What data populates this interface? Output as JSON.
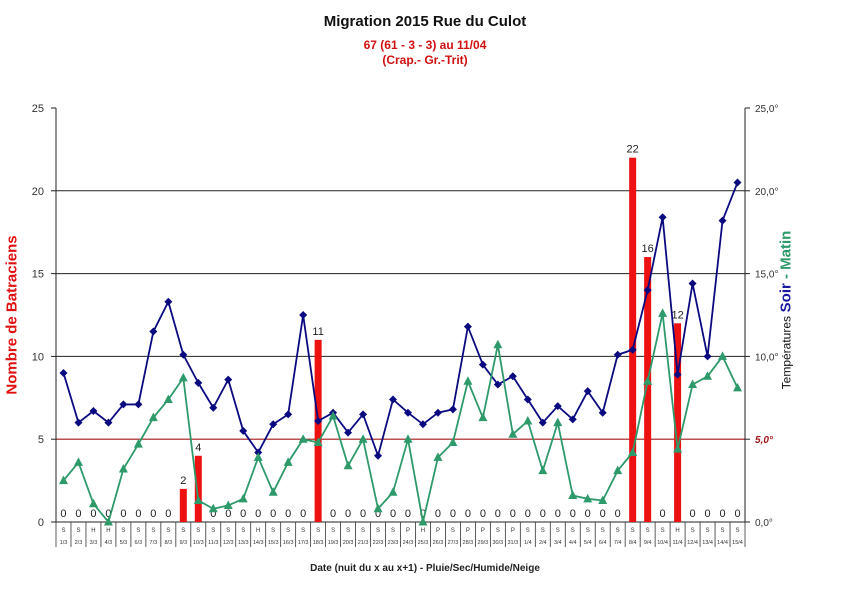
{
  "chart_data": {
    "type": "bar+line",
    "title": "Migration  2015 Rue du Culot",
    "subtitle": "67 (61 - 3 - 3) au 11/04",
    "subtitle2": "(Crap.- Gr.-Trit)",
    "xlabel": "Date (nuit du x au x+1) - Pluie/Sec/Humide/Neige",
    "ylabel": "Nombre de Batraciens",
    "y2label": {
      "prefix": "Températures",
      "soir": "Soir",
      "sep": " - ",
      "matin": "Matin"
    },
    "ylim": [
      0,
      25
    ],
    "y2lim": [
      0,
      25
    ],
    "yticks": [
      "0",
      "5",
      "10",
      "15",
      "20",
      "25"
    ],
    "y2ticks": [
      "0,0°",
      "5,0°",
      "10,0°",
      "15,0°",
      "20,0°",
      "25,0°"
    ],
    "threshold": {
      "value": 5,
      "label": "5,0°",
      "color": "#a01818"
    },
    "grid": true,
    "categories": [
      "1/3",
      "2/3",
      "3/3",
      "4/3",
      "5/3",
      "6/3",
      "7/3",
      "8/3",
      "9/3",
      "10/3",
      "11/3",
      "12/3",
      "13/3",
      "14/3",
      "15/3",
      "16/3",
      "17/3",
      "18/3",
      "19/3",
      "20/3",
      "21/3",
      "22/3",
      "23/3",
      "24/3",
      "25/3",
      "26/3",
      "27/3",
      "28/3",
      "29/3",
      "30/3",
      "31/3",
      "1/4",
      "2/4",
      "3/4",
      "4/4",
      "5/4",
      "6/4",
      "7/4",
      "8/4",
      "9/4",
      "10/4",
      "11/4",
      "12/4",
      "13/4",
      "14/4",
      "15/4"
    ],
    "weather": [
      "S",
      "S",
      "H",
      "H",
      "S",
      "S",
      "S",
      "S",
      "S",
      "S",
      "S",
      "S",
      "S",
      "H",
      "S",
      "S",
      "S",
      "S",
      "S",
      "S",
      "S",
      "S",
      "S",
      "P",
      "H",
      "P",
      "S",
      "P",
      "P",
      "S",
      "P",
      "S",
      "S",
      "S",
      "S",
      "S",
      "S",
      "S",
      "S",
      "S",
      "S",
      "H",
      "S",
      "S",
      "S",
      "S"
    ],
    "series": [
      {
        "name": "Batraciens",
        "type": "bar",
        "color": "#ee1111",
        "values": [
          0,
          0,
          0,
          0,
          0,
          0,
          0,
          0,
          2,
          4,
          0,
          0,
          0,
          0,
          0,
          0,
          0,
          11,
          0,
          0,
          0,
          0,
          0,
          0,
          0,
          0,
          0,
          0,
          0,
          0,
          0,
          0,
          0,
          0,
          0,
          0,
          0,
          0,
          22,
          16,
          0,
          12,
          0,
          0,
          0,
          0
        ]
      },
      {
        "name": "Soir",
        "type": "line",
        "axis": "y2",
        "color": "#0a0a80",
        "marker": "diamond",
        "values": [
          9.0,
          6.0,
          6.7,
          6.0,
          7.1,
          7.1,
          11.5,
          13.3,
          10.1,
          8.4,
          6.9,
          8.6,
          5.5,
          4.2,
          5.9,
          6.5,
          12.5,
          6.1,
          6.6,
          5.4,
          6.5,
          4.0,
          7.4,
          6.6,
          5.9,
          6.6,
          6.8,
          11.8,
          9.5,
          8.3,
          8.8,
          7.4,
          6.0,
          7.0,
          6.2,
          7.9,
          6.6,
          10.1,
          10.4,
          14.0,
          18.4,
          8.9,
          14.4,
          10.0,
          18.2,
          20.5
        ]
      },
      {
        "name": "Matin",
        "type": "line",
        "axis": "y2",
        "color": "#2e9a6a",
        "marker": "triangle",
        "values": [
          2.5,
          3.6,
          1.1,
          0.0,
          3.2,
          4.7,
          6.3,
          7.4,
          8.7,
          1.3,
          0.8,
          1.0,
          1.4,
          3.9,
          1.8,
          3.6,
          5.0,
          4.8,
          6.4,
          3.4,
          5.0,
          0.8,
          1.8,
          5.0,
          0.0,
          3.9,
          4.8,
          8.5,
          6.3,
          10.7,
          5.3,
          6.1,
          3.1,
          6.0,
          1.6,
          1.4,
          1.3,
          3.1,
          4.2,
          8.5,
          12.6,
          4.4,
          8.3,
          8.8,
          10.0,
          8.1
        ]
      }
    ]
  }
}
